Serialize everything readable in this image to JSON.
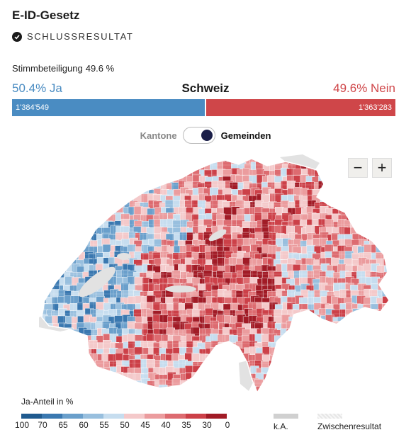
{
  "header": {
    "title": "E-ID-Gesetz",
    "status": "SCHLUSSRESULTAT"
  },
  "turnout": {
    "label": "Stimmbeteiligung",
    "value": "49.6 %"
  },
  "result": {
    "yes_label": "50.4% Ja",
    "no_label": "49.6% Nein",
    "region": "Schweiz",
    "yes_votes": "1'384'549",
    "no_votes": "1'363'283",
    "yes_share": 50.4
  },
  "toggle": {
    "left": "Kantone",
    "right": "Gemeinden",
    "active": "Gemeinden"
  },
  "zoom": {
    "minus": "−",
    "plus": "+"
  },
  "legend": {
    "title": "Ja-Anteil in %",
    "colors": [
      "#1f5a8f",
      "#3a78b0",
      "#6a9fcb",
      "#98bfde",
      "#c6ddef",
      "#f4c9ca",
      "#eb9c9e",
      "#dd6b70",
      "#cc4048",
      "#a11b26"
    ],
    "ticks": [
      "100",
      "70",
      "65",
      "60",
      "55",
      "50",
      "45",
      "40",
      "35",
      "30",
      "0"
    ],
    "ka": "k.A.",
    "provisional": "Zwischenresultat"
  },
  "colors": {
    "yes": "#4a8cc2",
    "no": "#cf4649",
    "lake": "#e2e2e2"
  }
}
